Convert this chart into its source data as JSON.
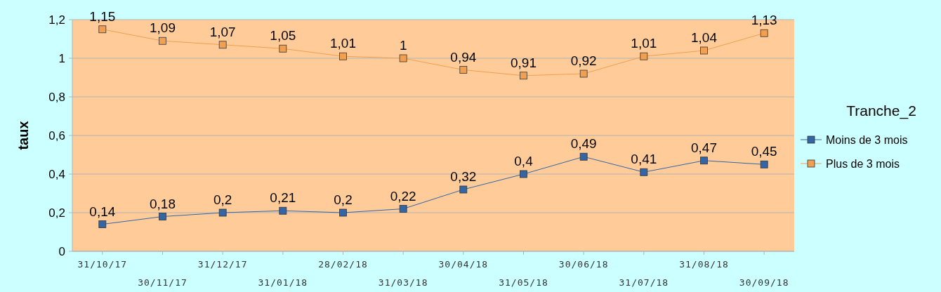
{
  "chart_data": {
    "type": "line",
    "ylabel": "taux",
    "legend_title": "Tranche_2",
    "legend": "right",
    "grid": "y",
    "marker": "square",
    "line_style": "solid",
    "categories": [
      "31/10/17",
      "30/11/17",
      "31/12/17",
      "31/01/18",
      "28/02/18",
      "31/03/18",
      "30/04/18",
      "31/05/18",
      "30/06/18",
      "31/07/18",
      "31/08/18",
      "30/09/18"
    ],
    "ylim": [
      0,
      1.2
    ],
    "yticks": [
      0,
      {
        "value": 0.2,
        "label": "0,2"
      },
      {
        "value": 0.4,
        "label": "0,4"
      },
      {
        "value": 0.6,
        "label": "0,6"
      },
      {
        "value": 0.8,
        "label": "0,8"
      },
      1,
      {
        "value": 1.2,
        "label": "1,2"
      }
    ],
    "series": [
      {
        "name": "Moins de 3 mois",
        "color": "#3465a4",
        "values": [
          0.14,
          0.18,
          0.2,
          0.21,
          0.2,
          0.22,
          0.32,
          0.4,
          0.49,
          0.41,
          0.47,
          0.45
        ],
        "value_labels": [
          "0,14",
          "0,18",
          "0,2",
          "0,21",
          "0,2",
          "0,22",
          "0,32",
          "0,4",
          "0,49",
          "0,41",
          "0,47",
          "0,45"
        ]
      },
      {
        "name": "Plus de 3 mois",
        "color": "#f0a050",
        "values": [
          1.15,
          1.09,
          1.07,
          1.05,
          1.01,
          1,
          0.94,
          0.91,
          0.92,
          1.01,
          1.04,
          1.13
        ],
        "value_labels": [
          "1,15",
          "1,09",
          "1,07",
          "1,05",
          "1,01",
          "1",
          "0,94",
          "0,91",
          "0,92",
          "1,01",
          "1,04",
          "1,13"
        ]
      }
    ]
  }
}
